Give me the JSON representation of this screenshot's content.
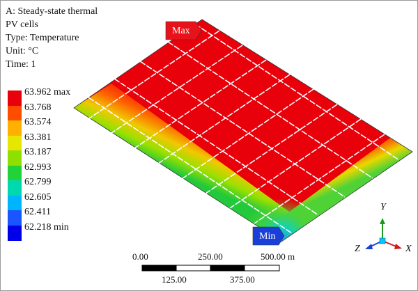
{
  "info": {
    "line1": "A: Steady-state thermal",
    "line2": "PV cells",
    "line3": "Type: Temperature",
    "line4": "Unit: °C",
    "line5": "Time: 1"
  },
  "legend": {
    "entries": [
      {
        "label": "63.962 max",
        "color": "#e8000b"
      },
      {
        "label": "63.768",
        "color": "#ff4d00"
      },
      {
        "label": "63.574",
        "color": "#ffb000"
      },
      {
        "label": "63.381",
        "color": "#e6e600"
      },
      {
        "label": "63.187",
        "color": "#8fe000"
      },
      {
        "label": "62.993",
        "color": "#22d23a"
      },
      {
        "label": "62.799",
        "color": "#00d9b0"
      },
      {
        "label": "62.605",
        "color": "#00b5ff"
      },
      {
        "label": "62.411",
        "color": "#1a56ff"
      },
      {
        "label": "62.218 min",
        "color": "#0000e8"
      }
    ]
  },
  "markers": {
    "max_label": "Max",
    "max_color": "#e8121a",
    "min_label": "Min",
    "min_color": "#1a3fd9"
  },
  "scale_bar": {
    "top_labels": [
      "0.00",
      "250.00",
      "500.00 m"
    ],
    "bottom_labels": [
      "125.00",
      "375.00"
    ]
  },
  "triad": {
    "y_label": "Y",
    "z_label": "Z",
    "x_label": "X"
  }
}
